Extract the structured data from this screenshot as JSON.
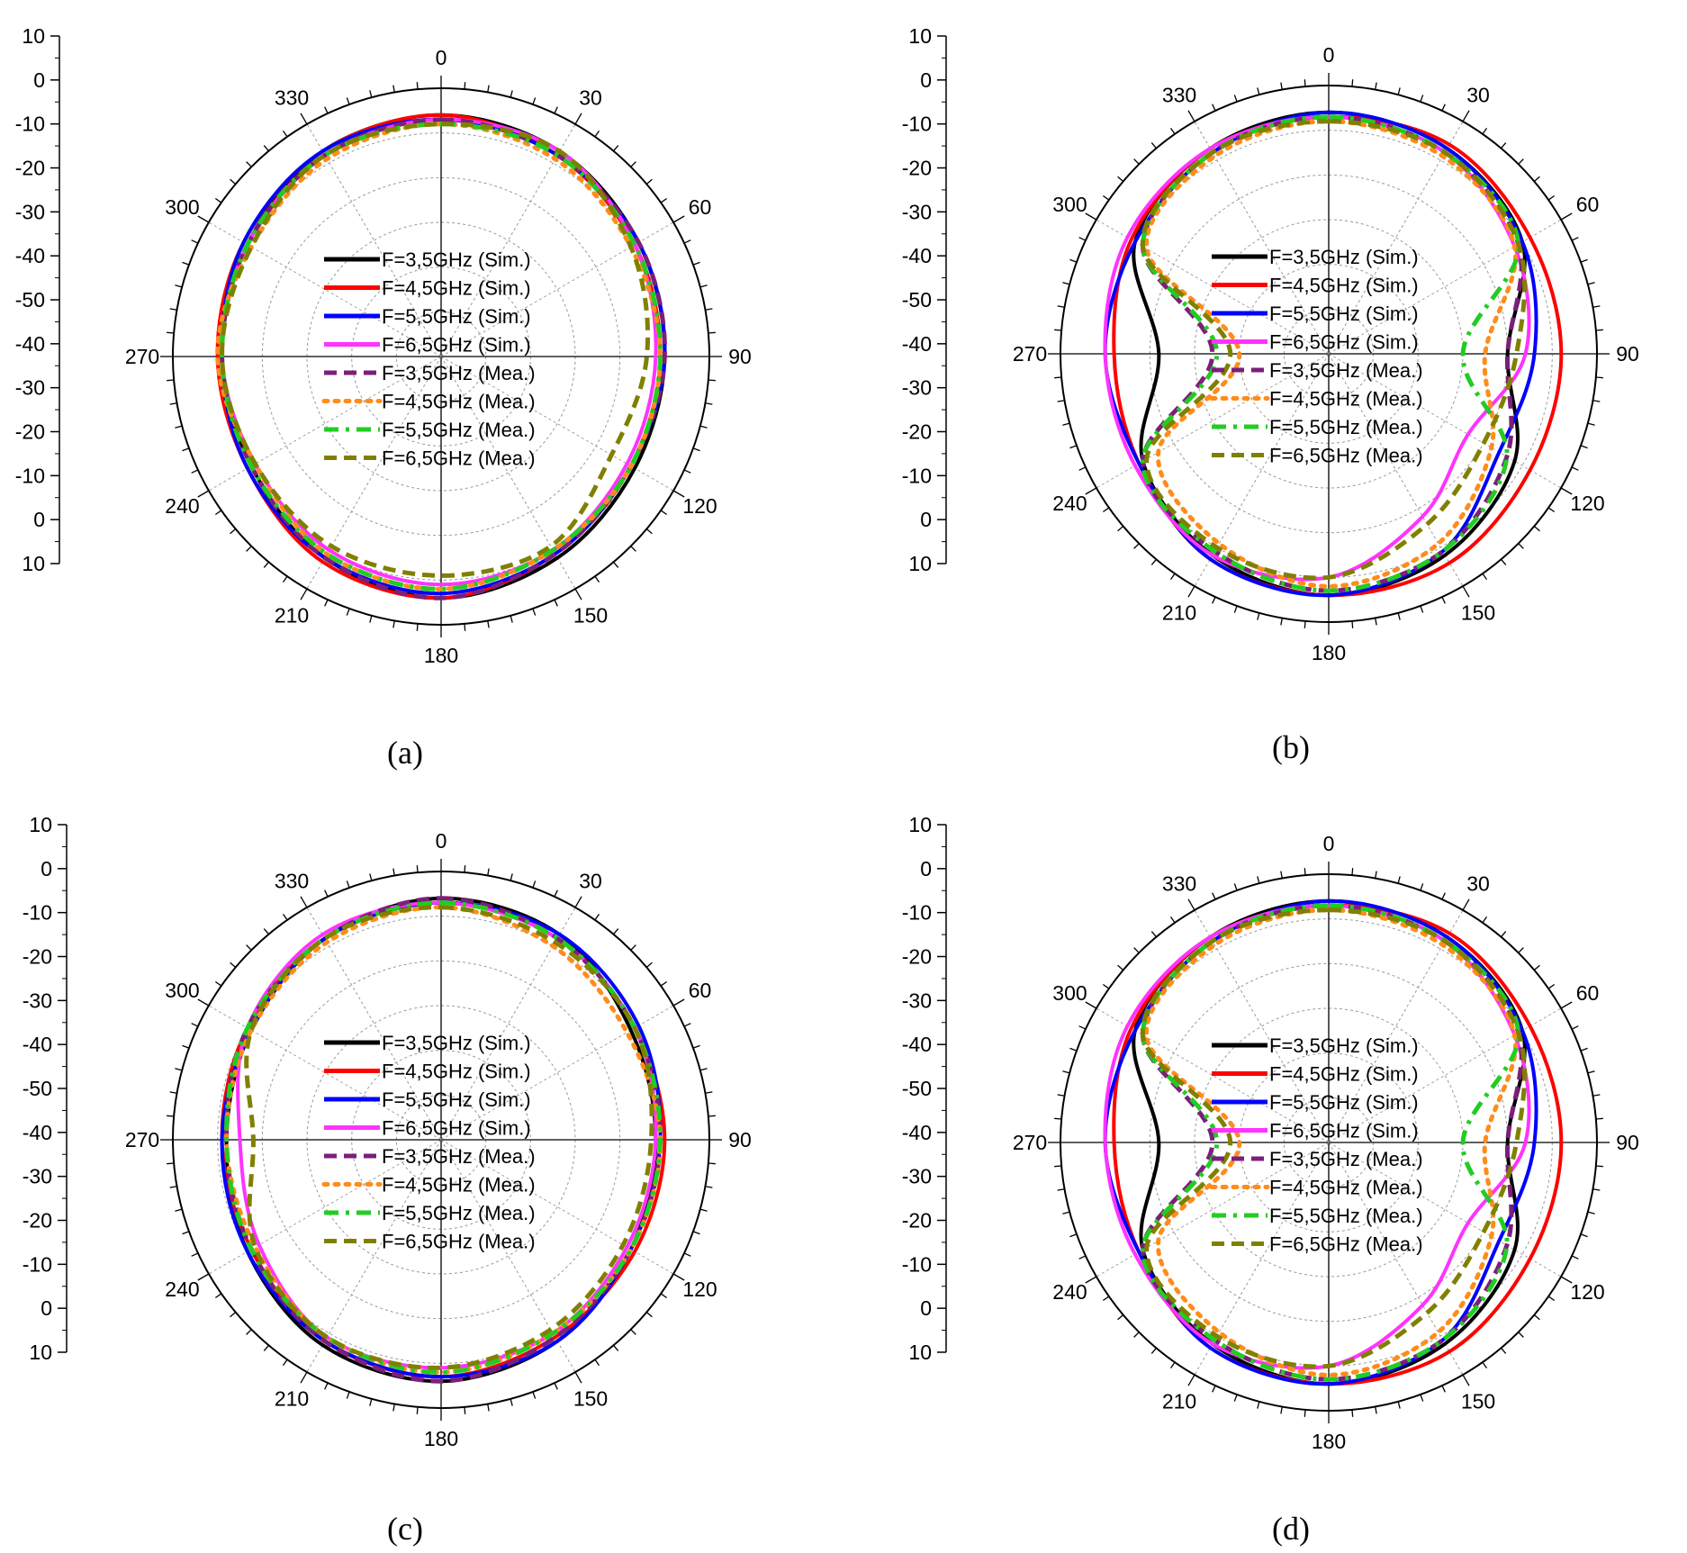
{
  "figure": {
    "captions": [
      "(a)",
      "(b)",
      "(c)",
      "(d)"
    ],
    "series_colors": {
      "F=3,5GHz (Sim.)": "#000000",
      "F=4,5GHz (Sim.)": "#ff0000",
      "F=5,5GHz (Sim.)": "#0000ff",
      "F=6,5GHz (Sim.)": "#ff33ff",
      "F=3,5GHz (Mea.)": "#7b1f7b",
      "F=4,5GHz (Mea.)": "#ff8c1a",
      "F=5,5GHz (Mea.)": "#22cc22",
      "F=6,5GHz (Mea.)": "#808000"
    }
  },
  "chart_data": [
    {
      "type": "polar-line",
      "caption": "(a)",
      "angular_ticks": [
        "0",
        "30",
        "60",
        "90",
        "120",
        "150",
        "180",
        "210",
        "240",
        "270",
        "300",
        "330"
      ],
      "radial_axis_labels": [
        "10",
        "0",
        "-10",
        "-20",
        "-30",
        "-40",
        "-50",
        "-40",
        "-30",
        "-20",
        "-10",
        "0",
        "10"
      ],
      "r_range": [
        -50,
        10
      ],
      "angles_deg": [
        0,
        30,
        60,
        90,
        120,
        150,
        180,
        210,
        240,
        270,
        300,
        330
      ],
      "series": [
        {
          "name": "F=3,5GHz (Sim.)",
          "dash": "solid",
          "values": [
            4,
            3,
            1,
            0,
            0,
            2,
            4,
            2,
            -1,
            -1,
            0,
            3
          ]
        },
        {
          "name": "F=4,5GHz (Sim.)",
          "dash": "solid",
          "values": [
            4,
            2,
            0,
            -1,
            -1,
            1,
            4,
            3,
            0,
            0,
            1,
            3
          ]
        },
        {
          "name": "F=5,5GHz (Sim.)",
          "dash": "solid",
          "values": [
            3,
            2,
            1,
            0,
            -1,
            1,
            3,
            2,
            0,
            -1,
            1,
            3
          ]
        },
        {
          "name": "F=6,5GHz (Sim.)",
          "dash": "solid",
          "values": [
            3,
            3,
            0,
            -2,
            -2,
            0,
            1,
            0,
            -2,
            -1,
            0,
            2
          ]
        },
        {
          "name": "F=3,5GHz (Mea.)",
          "dash": "dash",
          "values": [
            3,
            2,
            1,
            0,
            -1,
            1,
            4,
            2,
            -1,
            -1,
            0,
            2
          ]
        },
        {
          "name": "F=4,5GHz (Mea.)",
          "dash": "dot",
          "values": [
            2,
            1,
            -1,
            -1,
            -1,
            0,
            2,
            1,
            -2,
            0,
            -1,
            1
          ]
        },
        {
          "name": "F=5,5GHz (Mea.)",
          "dash": "dashdot",
          "values": [
            2,
            2,
            0,
            -1,
            -1,
            0,
            2,
            1,
            -1,
            -1,
            0,
            2
          ]
        },
        {
          "name": "F=6,5GHz (Mea.)",
          "dash": "dash",
          "values": [
            2,
            3,
            -1,
            -4,
            -6,
            -1,
            -1,
            -1,
            -2,
            -1,
            -1,
            2
          ]
        }
      ]
    },
    {
      "type": "polar-line",
      "caption": "(b)",
      "angular_ticks": [
        "0",
        "30",
        "60",
        "90",
        "120",
        "150",
        "180",
        "210",
        "240",
        "270",
        "300",
        "330"
      ],
      "radial_axis_labels": [
        "10",
        "0",
        "-10",
        "-20",
        "-30",
        "-40",
        "-50",
        "-40",
        "-30",
        "-20",
        "-10",
        "0",
        "10"
      ],
      "r_range": [
        -50,
        10
      ],
      "angles_deg": [
        0,
        30,
        60,
        90,
        120,
        150,
        180,
        210,
        240,
        270,
        300,
        330
      ],
      "series": [
        {
          "name": "F=3,5GHz (Sim.)",
          "dash": "solid",
          "values": [
            4,
            3,
            0,
            -10,
            -2,
            2,
            4,
            2,
            -2,
            -12,
            0,
            3
          ]
        },
        {
          "name": "F=4,5GHz (Sim.)",
          "dash": "solid",
          "values": [
            3,
            4,
            2,
            2,
            2,
            4,
            4,
            3,
            -1,
            -2,
            1,
            3
          ]
        },
        {
          "name": "F=5,5GHz (Sim.)",
          "dash": "solid",
          "values": [
            4,
            3,
            0,
            -4,
            -6,
            1,
            4,
            3,
            -1,
            0,
            0,
            2
          ]
        },
        {
          "name": "F=6,5GHz (Sim.)",
          "dash": "solid",
          "values": [
            3,
            2,
            -2,
            -6,
            -14,
            -8,
            0,
            2,
            0,
            0,
            2,
            3
          ]
        },
        {
          "name": "F=3,5GHz (Mea.)",
          "dash": "dash",
          "values": [
            3,
            2,
            -1,
            -10,
            -4,
            1,
            3,
            1,
            -2,
            -24,
            -2,
            2
          ]
        },
        {
          "name": "F=4,5GHz (Mea.)",
          "dash": "dot",
          "values": [
            2,
            1,
            -2,
            -15,
            -8,
            -1,
            2,
            -1,
            -6,
            -30,
            -3,
            1
          ]
        },
        {
          "name": "F=5,5GHz (Mea.)",
          "dash": "dashdot",
          "values": [
            3,
            2,
            -1,
            -20,
            -4,
            1,
            3,
            1,
            -2,
            -25,
            -2,
            2
          ]
        },
        {
          "name": "F=6,5GHz (Mea.)",
          "dash": "dash",
          "values": [
            2,
            2,
            -1,
            -8,
            -10,
            -6,
            0,
            0,
            -3,
            -28,
            -2,
            2
          ]
        }
      ]
    },
    {
      "type": "polar-line",
      "caption": "(c)",
      "angular_ticks": [
        "0",
        "30",
        "60",
        "90",
        "120",
        "150",
        "180",
        "210",
        "240",
        "270",
        "300",
        "330"
      ],
      "radial_axis_labels": [
        "10",
        "0",
        "-10",
        "-20",
        "-30",
        "-40",
        "-50",
        "-40",
        "-30",
        "-20",
        "-10",
        "0",
        "10"
      ],
      "r_range": [
        -50,
        10
      ],
      "angles_deg": [
        0,
        30,
        60,
        90,
        120,
        150,
        180,
        210,
        240,
        270,
        300,
        330
      ],
      "series": [
        {
          "name": "F=3,5GHz (Sim.)",
          "dash": "solid",
          "values": [
            4,
            3,
            -1,
            -2,
            -1,
            2,
            4,
            3,
            0,
            -2,
            -1,
            2
          ]
        },
        {
          "name": "F=4,5GHz (Sim.)",
          "dash": "solid",
          "values": [
            3,
            2,
            0,
            0,
            0,
            1,
            3,
            2,
            -1,
            -1,
            0,
            2
          ]
        },
        {
          "name": "F=5,5GHz (Sim.)",
          "dash": "solid",
          "values": [
            3,
            3,
            1,
            -1,
            -1,
            2,
            3,
            2,
            0,
            -1,
            -1,
            2
          ]
        },
        {
          "name": "F=6,5GHz (Sim.)",
          "dash": "solid",
          "values": [
            3,
            2,
            0,
            -2,
            -2,
            0,
            1,
            1,
            -3,
            -5,
            0,
            3
          ]
        },
        {
          "name": "F=3,5GHz (Mea.)",
          "dash": "dash",
          "values": [
            4,
            2,
            0,
            -1,
            -1,
            1,
            4,
            2,
            -1,
            -2,
            0,
            2
          ]
        },
        {
          "name": "F=4,5GHz (Mea.)",
          "dash": "dot",
          "values": [
            2,
            0,
            -2,
            -1,
            -1,
            0,
            2,
            1,
            -2,
            -2,
            -1,
            1
          ]
        },
        {
          "name": "F=5,5GHz (Mea.)",
          "dash": "dashdot",
          "values": [
            3,
            2,
            0,
            -1,
            -1,
            0,
            2,
            1,
            -1,
            -2,
            0,
            2
          ]
        },
        {
          "name": "F=6,5GHz (Mea.)",
          "dash": "dash",
          "values": [
            2,
            1,
            0,
            -3,
            -3,
            -1,
            1,
            1,
            -2,
            -8,
            -1,
            2
          ]
        }
      ]
    },
    {
      "type": "polar-line",
      "caption": "(d)",
      "angular_ticks": [
        "0",
        "30",
        "60",
        "90",
        "120",
        "150",
        "180",
        "210",
        "240",
        "270",
        "300",
        "330"
      ],
      "radial_axis_labels": [
        "10",
        "0",
        "-10",
        "-20",
        "-30",
        "-40",
        "-50",
        "-40",
        "-30",
        "-20",
        "-10",
        "0",
        "10"
      ],
      "r_range": [
        -50,
        10
      ],
      "angles_deg": [
        0,
        30,
        60,
        90,
        120,
        150,
        180,
        210,
        240,
        270,
        300,
        330
      ],
      "series": [
        {
          "name": "F=3,5GHz (Sim.)",
          "dash": "solid",
          "values": [
            4,
            3,
            0,
            -10,
            -2,
            2,
            4,
            2,
            -2,
            -12,
            0,
            3
          ]
        },
        {
          "name": "F=4,5GHz (Sim.)",
          "dash": "solid",
          "values": [
            3,
            4,
            2,
            2,
            2,
            4,
            4,
            3,
            -1,
            -2,
            1,
            3
          ]
        },
        {
          "name": "F=5,5GHz (Sim.)",
          "dash": "solid",
          "values": [
            4,
            3,
            0,
            -4,
            -6,
            1,
            4,
            3,
            -1,
            0,
            0,
            2
          ]
        },
        {
          "name": "F=6,5GHz (Sim.)",
          "dash": "solid",
          "values": [
            3,
            2,
            -2,
            -6,
            -14,
            -8,
            0,
            2,
            0,
            0,
            2,
            3
          ]
        },
        {
          "name": "F=3,5GHz (Mea.)",
          "dash": "dash",
          "values": [
            3,
            2,
            -1,
            -10,
            -4,
            1,
            3,
            1,
            -2,
            -24,
            -2,
            2
          ]
        },
        {
          "name": "F=4,5GHz (Mea.)",
          "dash": "dot",
          "values": [
            2,
            1,
            -2,
            -15,
            -8,
            -1,
            2,
            -1,
            -6,
            -30,
            -3,
            1
          ]
        },
        {
          "name": "F=5,5GHz (Mea.)",
          "dash": "dashdot",
          "values": [
            3,
            2,
            -1,
            -20,
            -4,
            1,
            3,
            1,
            -2,
            -25,
            -2,
            2
          ]
        },
        {
          "name": "F=6,5GHz (Mea.)",
          "dash": "dash",
          "values": [
            2,
            2,
            -1,
            -8,
            -10,
            -6,
            0,
            0,
            -3,
            -28,
            -2,
            2
          ]
        }
      ]
    }
  ]
}
